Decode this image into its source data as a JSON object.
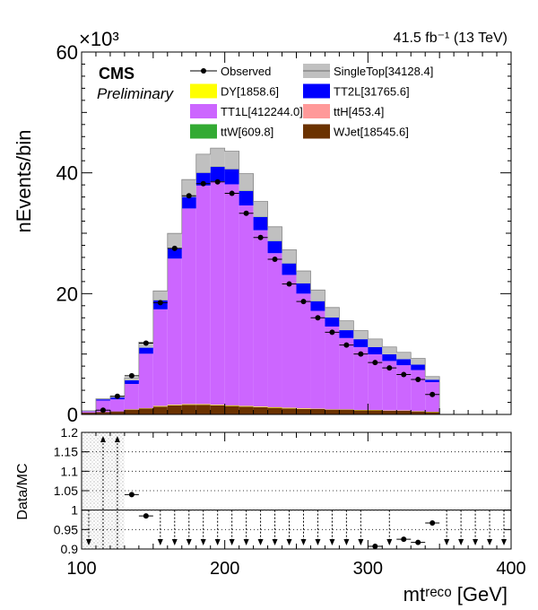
{
  "header": {
    "exponent": "×10³",
    "lumi": "41.5 fb⁻¹ (13 TeV)",
    "experiment": "CMS",
    "status": "Preliminary"
  },
  "chart_data": {
    "type": "bar",
    "stacked": true,
    "xlabel": "mtʳᵉᶜᵒ [GeV]",
    "ylabel": "nEvents/bin",
    "ratio_ylabel": "Data/MC",
    "xlim": [
      100,
      400
    ],
    "ylim": [
      0,
      60
    ],
    "ylim_units": "x10^3",
    "ratio_ylim": [
      0.9,
      1.2
    ],
    "x_ticks": [
      "100",
      "200",
      "300",
      "400"
    ],
    "y_ticks": [
      "0",
      "20",
      "40",
      "60"
    ],
    "ratio_ticks": [
      "0.9",
      "0.95",
      "1",
      "1.05",
      "1.1",
      "1.15",
      "1.2"
    ],
    "legend_position": "top-right",
    "bin_width": 10,
    "bin_low_edges": [
      100,
      110,
      120,
      130,
      140,
      150,
      160,
      170,
      180,
      190,
      200,
      210,
      220,
      230,
      240,
      250,
      260,
      270,
      280,
      290,
      300,
      310,
      320,
      330,
      340,
      350,
      360,
      370,
      380,
      390
    ],
    "series": [
      {
        "name": "WJet[18545.6]",
        "color": "#6b3200",
        "values": [
          0.3,
          0.4,
          0.5,
          0.8,
          1.0,
          1.3,
          1.5,
          1.6,
          1.6,
          1.5,
          1.4,
          1.3,
          1.2,
          1.1,
          1.0,
          0.9,
          0.9,
          0.8,
          0.8,
          0.7,
          0.7,
          0.6,
          0.6,
          0.5,
          0.4,
          0,
          0,
          0,
          0,
          0
        ]
      },
      {
        "name": "DY[1858.6]",
        "color": "#ffff00",
        "values": [
          0,
          0,
          0,
          0.05,
          0.05,
          0.1,
          0.1,
          0.1,
          0.1,
          0.1,
          0.1,
          0.1,
          0.1,
          0.1,
          0.1,
          0.1,
          0.05,
          0.05,
          0.05,
          0.05,
          0.05,
          0.05,
          0.05,
          0.05,
          0.05,
          0,
          0,
          0,
          0,
          0
        ]
      },
      {
        "name": "TT1L[412244.0]",
        "color": "#cc66ff",
        "values": [
          0.2,
          1.9,
          2.0,
          4.2,
          9.0,
          16.0,
          24.2,
          32.4,
          36.2,
          37.0,
          36.6,
          33.2,
          29.2,
          25.5,
          22.0,
          19.0,
          16.2,
          13.7,
          11.8,
          10.4,
          9.2,
          8.2,
          7.5,
          6.8,
          4.9,
          0,
          0,
          0,
          0,
          0
        ]
      },
      {
        "name": "TT2L[31765.6]",
        "color": "#0000ff",
        "values": [
          0.05,
          0.2,
          0.3,
          0.6,
          1.0,
          1.5,
          1.7,
          1.9,
          2.1,
          2.4,
          2.5,
          2.4,
          2.2,
          2.0,
          1.9,
          1.7,
          1.6,
          1.5,
          1.3,
          1.3,
          1.2,
          1.1,
          1.0,
          0.9,
          0.4,
          0,
          0,
          0,
          0,
          0
        ]
      },
      {
        "name": "ttW[609.8]",
        "color": "#33aa33",
        "values": [
          0,
          0,
          0,
          0.02,
          0.02,
          0.03,
          0.04,
          0.05,
          0.05,
          0.05,
          0.05,
          0.05,
          0.04,
          0.04,
          0.04,
          0.03,
          0.03,
          0.03,
          0.03,
          0.02,
          0.02,
          0.02,
          0.02,
          0.02,
          0.01,
          0,
          0,
          0,
          0,
          0
        ]
      },
      {
        "name": "ttH[453.4]",
        "color": "#ff9999",
        "values": [
          0,
          0,
          0,
          0.01,
          0.02,
          0.02,
          0.03,
          0.03,
          0.04,
          0.04,
          0.04,
          0.03,
          0.03,
          0.03,
          0.03,
          0.02,
          0.02,
          0.02,
          0.02,
          0.02,
          0.02,
          0.01,
          0.01,
          0.01,
          0.01,
          0,
          0,
          0,
          0,
          0
        ]
      },
      {
        "name": "SingleTop[34128.4]",
        "color": "#c0c0c0",
        "values": [
          0.05,
          0.1,
          0.2,
          0.4,
          0.9,
          1.5,
          2.4,
          2.8,
          3.0,
          3.0,
          2.9,
          2.8,
          2.5,
          2.3,
          2.2,
          2.0,
          1.8,
          1.6,
          1.5,
          1.4,
          1.3,
          1.2,
          1.1,
          1.0,
          0.5,
          0,
          0,
          0,
          0,
          0
        ]
      }
    ],
    "observed": {
      "name": "Observed",
      "values": [
        0,
        0.7,
        3.0,
        6.4,
        11.8,
        18.5,
        27.5,
        36.2,
        38.2,
        38.5,
        36.6,
        33.3,
        29.3,
        25.7,
        21.6,
        18.7,
        16.0,
        13.6,
        11.5,
        10.0,
        8.6,
        7.7,
        6.6,
        5.8,
        3.3,
        0,
        0,
        0,
        0,
        0
      ]
    },
    "ratio": {
      "points": [
        {
          "x": 135,
          "y": 1.04
        },
        {
          "x": 145,
          "y": 0.985
        },
        {
          "x": 305,
          "y": 0.907
        },
        {
          "x": 325,
          "y": 0.925
        },
        {
          "x": 335,
          "y": 0.917
        },
        {
          "x": 345,
          "y": 0.967
        }
      ],
      "up_arrows": [
        115,
        125
      ],
      "down_arrows": [
        105,
        155,
        165,
        175,
        185,
        195,
        205,
        215,
        225,
        235,
        245,
        255,
        265,
        275,
        285,
        295,
        315,
        355,
        365,
        375,
        385,
        395
      ]
    }
  }
}
